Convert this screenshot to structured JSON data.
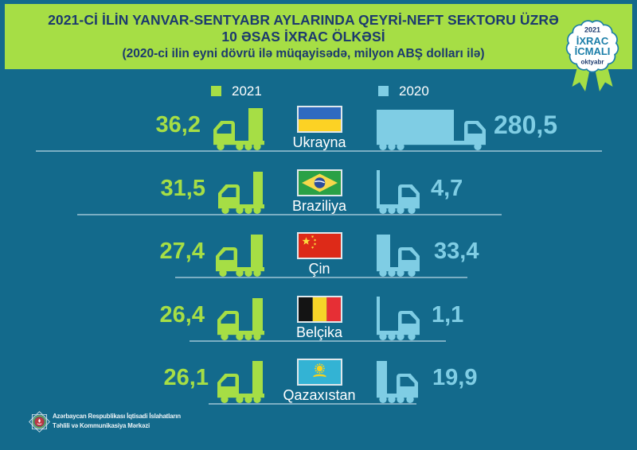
{
  "title": {
    "line1": "2021-Cİ İLİN YANVAR-SENTYABR AYLARINDA QEYRİ-NEFT SEKTORU ÜZRƏ",
    "line2": "10 ƏSAS İXRAC ÖLKƏSİ",
    "line3": "(2020-ci ilin eyni dövrü ilə müqayisədə, milyon ABŞ dolları ilə)"
  },
  "badge": {
    "year": "2021",
    "title_line1": "İXRAC",
    "title_line2": "İCMALI",
    "month": "oktyabr"
  },
  "legend": {
    "items": [
      {
        "label": "2021",
        "color": "#a6de45"
      },
      {
        "label": "2020",
        "color": "#7fcde4"
      }
    ]
  },
  "rows": [
    {
      "country": "Ukrayna",
      "flag": "ukraine",
      "v2021": "36,2",
      "v2020": "280,5"
    },
    {
      "country": "Braziliya",
      "flag": "brazil",
      "v2021": "31,5",
      "v2020": "4,7"
    },
    {
      "country": "Çin",
      "flag": "china",
      "v2021": "27,4",
      "v2020": "33,4"
    },
    {
      "country": "Belçika",
      "flag": "belgium",
      "v2021": "26,4",
      "v2020": "1,1"
    },
    {
      "country": "Qazaxıstan",
      "flag": "kazakhstan",
      "v2021": "26,1",
      "v2020": "19,9"
    }
  ],
  "footer": {
    "line1": "Azərbaycan Respublikası İqtisadi İslahatların",
    "line2": "Təhlili və Kommunikasiya Mərkəzi"
  },
  "colors": {
    "background": "#136a8c",
    "accent_green": "#a6de45",
    "accent_blue": "#7fcde4",
    "navy": "#1c3a6e",
    "badge_teal": "#1b7ea8",
    "line": "#d2e6f0"
  },
  "chart_data": {
    "type": "bar",
    "title": "2021-ci ilin yanvar-sentyabr aylarında qeyri-neft sektoru üzrə 10 əsas ixrac ölkəsi",
    "subtitle": "2020-ci ilin eyni dövrü ilə müqayisədə, milyon ABŞ dolları ilə",
    "categories": [
      "Ukrayna",
      "Braziliya",
      "Çin",
      "Belçika",
      "Qazaxıstan"
    ],
    "series": [
      {
        "name": "2021",
        "values": [
          36.2,
          31.5,
          27.4,
          26.4,
          26.1
        ]
      },
      {
        "name": "2020",
        "values": [
          280.5,
          4.7,
          33.4,
          1.1,
          19.9
        ]
      }
    ],
    "units": "milyon ABŞ dolları",
    "legend_position": "top"
  }
}
